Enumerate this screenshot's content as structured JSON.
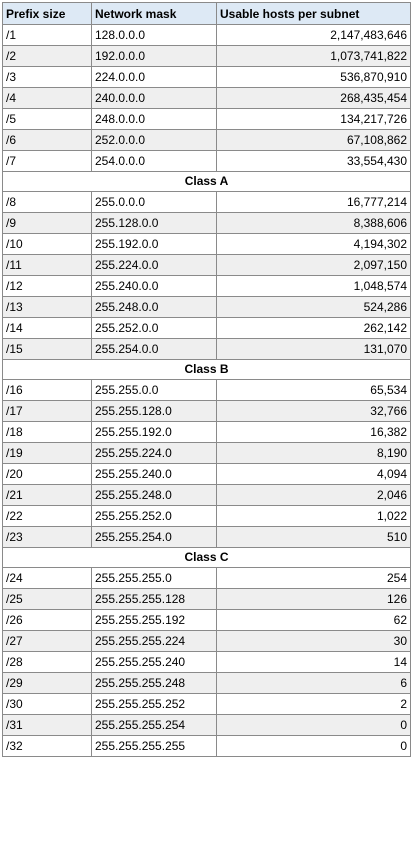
{
  "table": {
    "headers": [
      "Prefix size",
      "Network mask",
      "Usable hosts per subnet"
    ],
    "groups": [
      {
        "label": "",
        "rows": [
          [
            "/1",
            "128.0.0.0",
            "2,147,483,646"
          ],
          [
            "/2",
            "192.0.0.0",
            "1,073,741,822"
          ],
          [
            "/3",
            "224.0.0.0",
            "536,870,910"
          ],
          [
            "/4",
            "240.0.0.0",
            "268,435,454"
          ],
          [
            "/5",
            "248.0.0.0",
            "134,217,726"
          ],
          [
            "/6",
            "252.0.0.0",
            "67,108,862"
          ],
          [
            "/7",
            "254.0.0.0",
            "33,554,430"
          ]
        ]
      },
      {
        "label": "Class A",
        "rows": [
          [
            "/8",
            "255.0.0.0",
            "16,777,214"
          ],
          [
            "/9",
            "255.128.0.0",
            "8,388,606"
          ],
          [
            "/10",
            "255.192.0.0",
            "4,194,302"
          ],
          [
            "/11",
            "255.224.0.0",
            "2,097,150"
          ],
          [
            "/12",
            "255.240.0.0",
            "1,048,574"
          ],
          [
            "/13",
            "255.248.0.0",
            "524,286"
          ],
          [
            "/14",
            "255.252.0.0",
            "262,142"
          ],
          [
            "/15",
            "255.254.0.0",
            "131,070"
          ]
        ]
      },
      {
        "label": "Class B",
        "rows": [
          [
            "/16",
            "255.255.0.0",
            "65,534"
          ],
          [
            "/17",
            "255.255.128.0",
            "32,766"
          ],
          [
            "/18",
            "255.255.192.0",
            "16,382"
          ],
          [
            "/19",
            "255.255.224.0",
            "8,190"
          ],
          [
            "/20",
            "255.255.240.0",
            "4,094"
          ],
          [
            "/21",
            "255.255.248.0",
            "2,046"
          ],
          [
            "/22",
            "255.255.252.0",
            "1,022"
          ],
          [
            "/23",
            "255.255.254.0",
            "510"
          ]
        ]
      },
      {
        "label": "Class C",
        "rows": [
          [
            "/24",
            "255.255.255.0",
            "254"
          ],
          [
            "/25",
            "255.255.255.128",
            "126"
          ],
          [
            "/26",
            "255.255.255.192",
            "62"
          ],
          [
            "/27",
            "255.255.255.224",
            "30"
          ],
          [
            "/28",
            "255.255.255.240",
            "14"
          ],
          [
            "/29",
            "255.255.255.248",
            "6"
          ],
          [
            "/30",
            "255.255.255.252",
            "2"
          ],
          [
            "/31",
            "255.255.255.254",
            "0"
          ],
          [
            "/32",
            "255.255.255.255",
            "0"
          ]
        ]
      }
    ]
  },
  "colors": {
    "header_bg": "#dde9f5",
    "alt_row_bg": "#efefef",
    "border": "#8a8a8a"
  }
}
